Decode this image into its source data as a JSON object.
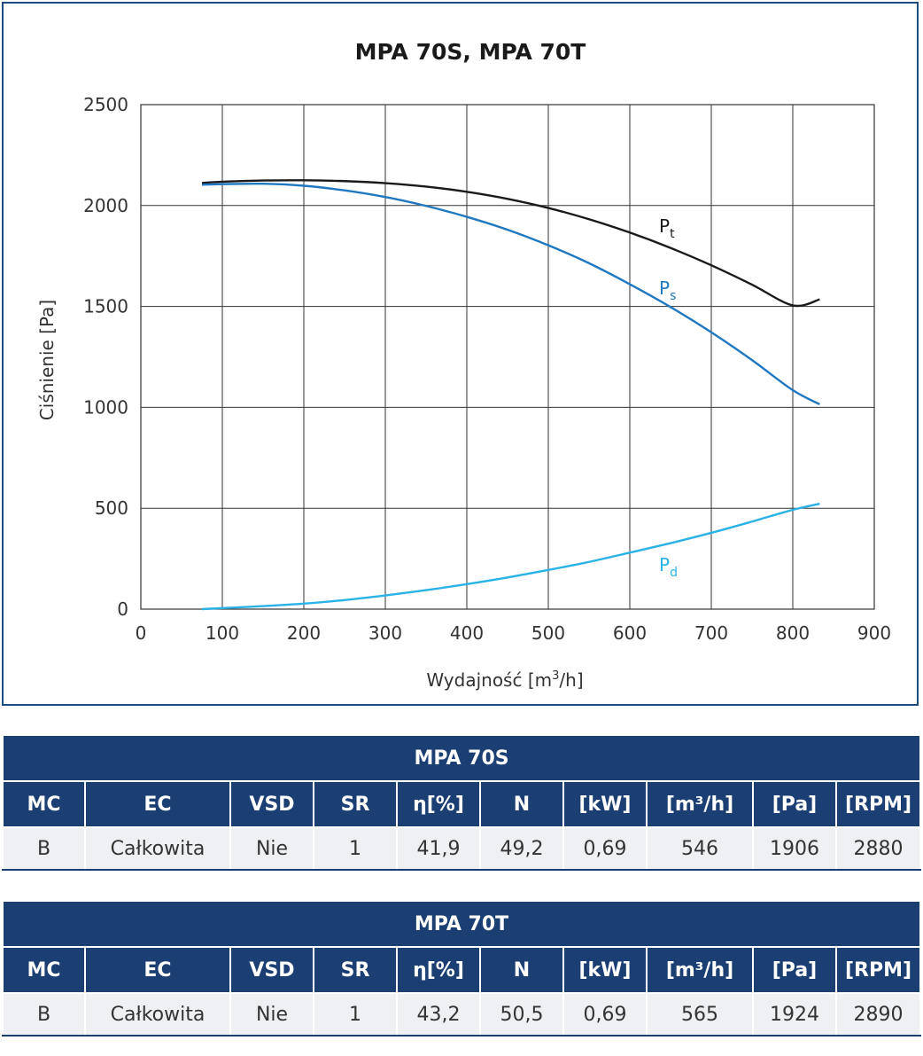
{
  "chart_data": {
    "type": "line",
    "title": "MPA 70S, MPA 70T",
    "xlabel": "Wydajność [m3/h]",
    "xlabel_pre": "Wydajność [m",
    "xlabel_sup": "3",
    "xlabel_post": "/h]",
    "ylabel": "Ciśnienie [Pa]",
    "xlim": [
      0,
      900
    ],
    "ylim": [
      0,
      2500
    ],
    "xticks": [
      0,
      100,
      200,
      300,
      400,
      500,
      600,
      700,
      800,
      900
    ],
    "yticks": [
      0,
      500,
      1000,
      1500,
      2000,
      2500
    ],
    "grid": true,
    "series": [
      {
        "name": "Pt",
        "label_main": "P",
        "label_sub": "t",
        "color": "#1a1a1a",
        "x": [
          75,
          100,
          150,
          200,
          250,
          300,
          350,
          400,
          450,
          500,
          550,
          600,
          650,
          700,
          750,
          800,
          833
        ],
        "y": [
          2112,
          2118,
          2124,
          2125,
          2121,
          2111,
          2094,
          2068,
          2033,
          1988,
          1932,
          1866,
          1790,
          1704,
          1608,
          1505,
          1535
        ]
      },
      {
        "name": "Ps",
        "label_main": "P",
        "label_sub": "s",
        "color": "#1f78c0",
        "x": [
          75,
          100,
          150,
          200,
          250,
          300,
          350,
          400,
          450,
          500,
          550,
          600,
          650,
          700,
          750,
          800,
          833
        ],
        "y": [
          2103,
          2106,
          2108,
          2098,
          2075,
          2042,
          1998,
          1944,
          1880,
          1803,
          1714,
          1610,
          1497,
          1372,
          1234,
          1085,
          1015
        ]
      },
      {
        "name": "Pd",
        "label_main": "P",
        "label_sub": "d",
        "color": "#29b2e6",
        "x": [
          75,
          100,
          150,
          200,
          250,
          300,
          350,
          400,
          450,
          500,
          550,
          600,
          650,
          700,
          750,
          800,
          833
        ],
        "y": [
          0,
          5,
          15,
          27,
          45,
          68,
          94,
          124,
          157,
          194,
          234,
          280,
          327,
          378,
          434,
          492,
          522
        ]
      }
    ]
  },
  "tables": [
    {
      "title": "MPA 70S",
      "headers": [
        "MC",
        "EC",
        "VSD",
        "SR",
        "η[%]",
        "N",
        "[kW]",
        "[m³/h]",
        "[Pa]",
        "[RPM]"
      ],
      "row": [
        "B",
        "Całkowita",
        "Nie",
        "1",
        "41,9",
        "49,2",
        "0,69",
        "546",
        "1906",
        "2880"
      ]
    },
    {
      "title": "MPA 70T",
      "headers": [
        "MC",
        "EC",
        "VSD",
        "SR",
        "η[%]",
        "N",
        "[kW]",
        "[m³/h]",
        "[Pa]",
        "[RPM]"
      ],
      "row": [
        "B",
        "Całkowita",
        "Nie",
        "1",
        "43,2",
        "50,5",
        "0,69",
        "565",
        "1924",
        "2890"
      ]
    }
  ]
}
